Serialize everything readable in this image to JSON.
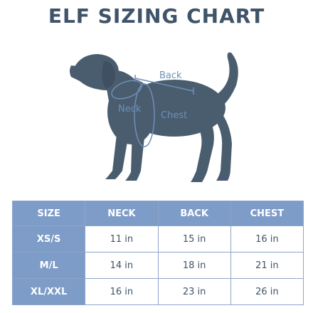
{
  "title": "ELF SIZING CHART",
  "figure": {
    "icon": "dog-silhouette-icon",
    "colors": {
      "dog": "#4a5d6f",
      "measure": "#6e8fb8"
    },
    "labels": {
      "back": "Back",
      "neck": "Neck",
      "chest": "Chest"
    }
  },
  "table": {
    "headers": [
      "SIZE",
      "NECK",
      "BACK",
      "CHEST"
    ],
    "rows": [
      {
        "size": "XS/S",
        "neck": "11 in",
        "back": "15 in",
        "chest": "16 in"
      },
      {
        "size": "M/L",
        "neck": "14 in",
        "back": "18 in",
        "chest": "21 in"
      },
      {
        "size": "XL/XXL",
        "neck": "16 in",
        "back": "23 in",
        "chest": "26 in"
      }
    ],
    "colors": {
      "header_bg": "#7e9cc8",
      "border": "#8ea5c9",
      "text": "#3f5468"
    }
  }
}
